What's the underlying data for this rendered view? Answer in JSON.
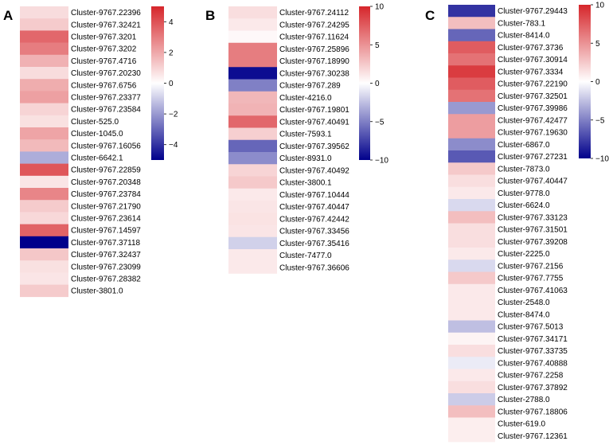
{
  "colors": {
    "low": "#00008b",
    "mid": "#ffffff",
    "high": "#d6262b"
  },
  "chart_data": [
    {
      "type": "heatmap",
      "panel": "A",
      "colorbar_ticks": [
        4,
        2,
        0,
        -2,
        -4
      ],
      "range": [
        -5,
        5
      ],
      "rows": [
        "Cluster-9767.22396",
        "Cluster-9767.32421",
        "Cluster-9767.3201",
        "Cluster-9767.3202",
        "Cluster-9767.4716",
        "Cluster-9767.20230",
        "Cluster-9767.6756",
        "Cluster-9767.23377",
        "Cluster-9767.23584",
        "Cluster-525.0",
        "Cluster-1045.0",
        "Cluster-9767.16056",
        "Cluster-6642.1",
        "Cluster-9767.22859",
        "Cluster-9767.20348",
        "Cluster-9767.23784",
        "Cluster-9767.21790",
        "Cluster-9767.23614",
        "Cluster-9767.14597",
        "Cluster-9767.37118",
        "Cluster-9767.32437",
        "Cluster-9767.23099",
        "Cluster-9767.28382",
        "Cluster-3801.0"
      ],
      "values": [
        0.8,
        1.2,
        3.5,
        3.0,
        1.8,
        0.8,
        1.9,
        2.2,
        1.0,
        0.7,
        2.1,
        1.6,
        -1.6,
        3.9,
        0.6,
        2.8,
        1.2,
        0.9,
        3.6,
        -5.0,
        1.3,
        0.7,
        0.6,
        1.2
      ]
    },
    {
      "type": "heatmap",
      "panel": "B",
      "colorbar_ticks": [
        10,
        5,
        0,
        -5,
        -10
      ],
      "range": [
        -10,
        10
      ],
      "rows": [
        "Cluster-9767.24112",
        "Cluster-9767.24295",
        "Cluster-9767.11624",
        "Cluster-9767.25896",
        "Cluster-9767.18990",
        "Cluster-9767.30238",
        "Cluster-9767.289",
        "Cluster-4216.0",
        "Cluster-9767.19801",
        "Cluster-9767.40491",
        "Cluster-7593.1",
        "Cluster-9767.39562",
        "Cluster-8931.0",
        "Cluster-9767.40492",
        "Cluster-3800.1",
        "Cluster-9767.10444",
        "Cluster-9767.40447",
        "Cluster-9767.42442",
        "Cluster-9767.33456",
        "Cluster-9767.35416",
        "Cluster-7477.0",
        "Cluster-9767.36606"
      ],
      "values": [
        1.5,
        1.0,
        0.3,
        6.0,
        6.0,
        -9.5,
        -5.0,
        3.3,
        3.5,
        7.0,
        2.2,
        -6.0,
        -4.5,
        2.0,
        2.5,
        1.0,
        1.2,
        1.3,
        1.2,
        -1.8,
        1.0,
        1.0
      ]
    },
    {
      "type": "heatmap",
      "panel": "C",
      "colorbar_ticks": [
        10,
        5,
        0,
        -5,
        -10
      ],
      "range": [
        -10,
        10
      ],
      "rows": [
        "Cluster-9767.29443",
        "Cluster-783.1",
        "Cluster-8414.0",
        "Cluster-9767.3736",
        "Cluster-9767.30914",
        "Cluster-9767.3334",
        "Cluster-9767.22190",
        "Cluster-9767.32501",
        "Cluster-9767.39986",
        "Cluster-9767.42477",
        "Cluster-9767.19630",
        "Cluster-6867.0",
        "Cluster-9767.27231",
        "Cluster-7873.0",
        "Cluster-9767.40447",
        "Cluster-9778.0",
        "Cluster-6624.0",
        "Cluster-9767.33123",
        "Cluster-9767.31501",
        "Cluster-9767.39208",
        "Cluster-2225.0",
        "Cluster-9767.2156",
        "Cluster-9767.7755",
        "Cluster-9767.41063",
        "Cluster-2548.0",
        "Cluster-8474.0",
        "Cluster-9767.5013",
        "Cluster-9767.34171",
        "Cluster-9767.33735",
        "Cluster-9767.40888",
        "Cluster-9767.2258",
        "Cluster-9767.37892",
        "Cluster-2788.0",
        "Cluster-9767.18806",
        "Cluster-619.0",
        "Cluster-9767.12361"
      ],
      "values": [
        -8.0,
        3.0,
        -6.0,
        7.5,
        6.5,
        9.0,
        7.5,
        6.5,
        -4.0,
        4.5,
        4.5,
        -4.5,
        -6.5,
        2.5,
        1.5,
        1.0,
        -1.5,
        3.0,
        1.5,
        1.5,
        1.0,
        -1.5,
        2.5,
        1.0,
        1.0,
        1.0,
        -2.5,
        0.5,
        1.5,
        -0.8,
        1.0,
        1.5,
        -2.0,
        3.0,
        0.8,
        0.8
      ]
    }
  ]
}
